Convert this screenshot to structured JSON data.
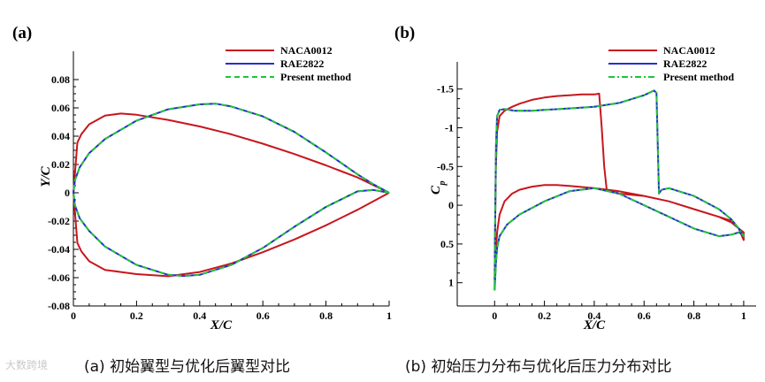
{
  "chart_data": [
    {
      "type": "line",
      "panel_label": "(a)",
      "xlabel": "X/C",
      "ylabel": "Y/C",
      "xlim": [
        0,
        1.0
      ],
      "ylim": [
        -0.08,
        0.1
      ],
      "x_ticks": [
        "0",
        "0.2",
        "0.4",
        "0.6",
        "0.8",
        "1"
      ],
      "y_ticks": [
        "-0.08",
        "-0.06",
        "-0.04",
        "-0.02",
        "0",
        "0.02",
        "0.04",
        "0.06",
        "0.08"
      ],
      "caption": "(a) 初始翼型与优化后翼型对比",
      "legend": [
        "NACA0012",
        "RAE2822",
        "Present method"
      ],
      "series": [
        {
          "name": "NACA0012",
          "color": "#c8161d",
          "style": "solid",
          "x": [
            1,
            0.9,
            0.8,
            0.7,
            0.6,
            0.5,
            0.4,
            0.3,
            0.2,
            0.15,
            0.1,
            0.05,
            0.025,
            0.0125,
            0,
            0.0125,
            0.025,
            0.05,
            0.1,
            0.15,
            0.2,
            0.3,
            0.4,
            0.5,
            0.6,
            0.7,
            0.8,
            0.9,
            1
          ],
          "y": [
            0,
            0.0108,
            0.0194,
            0.0274,
            0.0347,
            0.0413,
            0.0469,
            0.0515,
            0.0551,
            0.056,
            0.0545,
            0.0484,
            0.0413,
            0.0355,
            0,
            -0.0355,
            -0.0413,
            -0.0484,
            -0.0545,
            -0.056,
            -0.0575,
            -0.059,
            -0.056,
            -0.05,
            -0.042,
            -0.033,
            -0.023,
            -0.012,
            0
          ]
        },
        {
          "name": "RAE2822",
          "color": "#2b2bd0",
          "style": "solid",
          "x": [
            1,
            0.95,
            0.9,
            0.8,
            0.7,
            0.6,
            0.5,
            0.45,
            0.4,
            0.3,
            0.2,
            0.1,
            0.05,
            0.02,
            0.005,
            0,
            0.005,
            0.02,
            0.05,
            0.1,
            0.2,
            0.3,
            0.35,
            0.4,
            0.5,
            0.6,
            0.7,
            0.8,
            0.9,
            0.95,
            1
          ],
          "y": [
            0,
            0.006,
            0.013,
            0.0285,
            0.043,
            0.054,
            0.061,
            0.063,
            0.0625,
            0.059,
            0.051,
            0.038,
            0.028,
            0.018,
            0.009,
            0,
            -0.009,
            -0.018,
            -0.027,
            -0.038,
            -0.051,
            -0.058,
            -0.0588,
            -0.058,
            -0.051,
            -0.039,
            -0.024,
            -0.01,
            0.001,
            0.002,
            0
          ]
        },
        {
          "name": "Present method",
          "color": "#1fc43a",
          "style": "dashed",
          "x": [
            1,
            0.95,
            0.9,
            0.8,
            0.7,
            0.6,
            0.5,
            0.45,
            0.4,
            0.3,
            0.2,
            0.1,
            0.05,
            0.02,
            0.005,
            0,
            0.005,
            0.02,
            0.05,
            0.1,
            0.2,
            0.3,
            0.35,
            0.4,
            0.5,
            0.6,
            0.7,
            0.8,
            0.9,
            0.95,
            1
          ],
          "y": [
            0,
            0.006,
            0.013,
            0.0285,
            0.043,
            0.054,
            0.061,
            0.063,
            0.0625,
            0.059,
            0.051,
            0.038,
            0.028,
            0.018,
            0.009,
            0,
            -0.009,
            -0.018,
            -0.027,
            -0.038,
            -0.051,
            -0.058,
            -0.0588,
            -0.058,
            -0.051,
            -0.039,
            -0.024,
            -0.01,
            0.001,
            0.002,
            0
          ]
        }
      ]
    },
    {
      "type": "line",
      "panel_label": "(b)",
      "xlabel": "X/C",
      "ylabel": "C",
      "ylabel_sub": "p",
      "xlim": [
        -0.15,
        1.05
      ],
      "ylim": [
        1.3,
        -1.85
      ],
      "x_ticks": [
        "0",
        "0.2",
        "0.4",
        "0.6",
        "0.8",
        "1"
      ],
      "y_ticks": [
        "-1.5",
        "-1",
        "-0.5",
        "0",
        "0.5",
        "1"
      ],
      "caption": "(b) 初始压力分布与优化后压力分布对比",
      "legend": [
        "NACA0012",
        "RAE2822",
        "Present method"
      ],
      "series": [
        {
          "name": "NACA0012",
          "color": "#c8161d",
          "style": "solid",
          "x": [
            0,
            0.002,
            0.005,
            0.01,
            0.02,
            0.04,
            0.07,
            0.1,
            0.15,
            0.2,
            0.25,
            0.3,
            0.35,
            0.4,
            0.42,
            0.43,
            0.44,
            0.45,
            0.5,
            0.6,
            0.7,
            0.8,
            0.9,
            0.95,
            0.98,
            1.0,
            1.0,
            0.98,
            0.95,
            0.9,
            0.8,
            0.7,
            0.6,
            0.5,
            0.4,
            0.3,
            0.25,
            0.2,
            0.15,
            0.1,
            0.07,
            0.04,
            0.02,
            0.01,
            0.005,
            0
          ],
          "y": [
            0.95,
            0.3,
            -0.5,
            -0.95,
            -1.15,
            -1.22,
            -1.27,
            -1.31,
            -1.36,
            -1.39,
            -1.41,
            -1.42,
            -1.43,
            -1.43,
            -1.44,
            -1.0,
            -0.5,
            -0.2,
            -0.15,
            -0.12,
            -0.05,
            0.05,
            0.15,
            0.22,
            0.3,
            0.45,
            0.35,
            0.3,
            0.2,
            0.15,
            0.05,
            -0.05,
            -0.12,
            -0.18,
            -0.22,
            -0.25,
            -0.26,
            -0.26,
            -0.24,
            -0.2,
            -0.15,
            -0.05,
            0.12,
            0.35,
            0.6,
            0.95
          ]
        },
        {
          "name": "RAE2822",
          "color": "#2b2bd0",
          "style": "solid",
          "x": [
            0,
            0.003,
            0.006,
            0.01,
            0.02,
            0.04,
            0.08,
            0.15,
            0.2,
            0.3,
            0.4,
            0.5,
            0.6,
            0.64,
            0.65,
            0.66,
            0.67,
            0.7,
            0.8,
            0.9,
            0.95,
            0.98,
            1.0,
            1.0,
            0.98,
            0.95,
            0.9,
            0.8,
            0.7,
            0.6,
            0.5,
            0.4,
            0.3,
            0.2,
            0.1,
            0.05,
            0.02,
            0.01,
            0.005,
            0
          ],
          "y": [
            1.1,
            0.0,
            -0.8,
            -1.15,
            -1.23,
            -1.24,
            -1.22,
            -1.22,
            -1.23,
            -1.25,
            -1.27,
            -1.32,
            -1.42,
            -1.48,
            -1.45,
            -0.15,
            -0.2,
            -0.22,
            -0.12,
            0.05,
            0.18,
            0.3,
            0.4,
            0.38,
            0.35,
            0.38,
            0.4,
            0.3,
            0.15,
            0.0,
            -0.15,
            -0.22,
            -0.18,
            -0.05,
            0.12,
            0.25,
            0.4,
            0.55,
            0.75,
            1.1
          ]
        },
        {
          "name": "Present method",
          "color": "#1fc43a",
          "style": "dashdot",
          "x": [
            0,
            0.003,
            0.006,
            0.01,
            0.02,
            0.04,
            0.08,
            0.15,
            0.2,
            0.3,
            0.4,
            0.5,
            0.6,
            0.64,
            0.65,
            0.66,
            0.67,
            0.7,
            0.8,
            0.9,
            0.95,
            0.98,
            1.0,
            1.0,
            0.98,
            0.95,
            0.9,
            0.8,
            0.7,
            0.6,
            0.5,
            0.4,
            0.3,
            0.2,
            0.1,
            0.05,
            0.02,
            0.01,
            0.005,
            0
          ],
          "y": [
            1.1,
            0.0,
            -0.8,
            -1.15,
            -1.23,
            -1.24,
            -1.22,
            -1.22,
            -1.23,
            -1.25,
            -1.27,
            -1.32,
            -1.42,
            -1.48,
            -1.45,
            -0.15,
            -0.2,
            -0.22,
            -0.12,
            0.05,
            0.18,
            0.3,
            0.4,
            0.38,
            0.35,
            0.38,
            0.4,
            0.3,
            0.15,
            0.0,
            -0.15,
            -0.22,
            -0.18,
            -0.05,
            0.12,
            0.25,
            0.4,
            0.55,
            0.75,
            1.1
          ]
        }
      ]
    }
  ],
  "captions": {
    "a": "(a) 初始翼型与优化后翼型对比",
    "b": "(b) 初始压力分布与优化后压力分布对比"
  },
  "watermark": "大数跨境"
}
